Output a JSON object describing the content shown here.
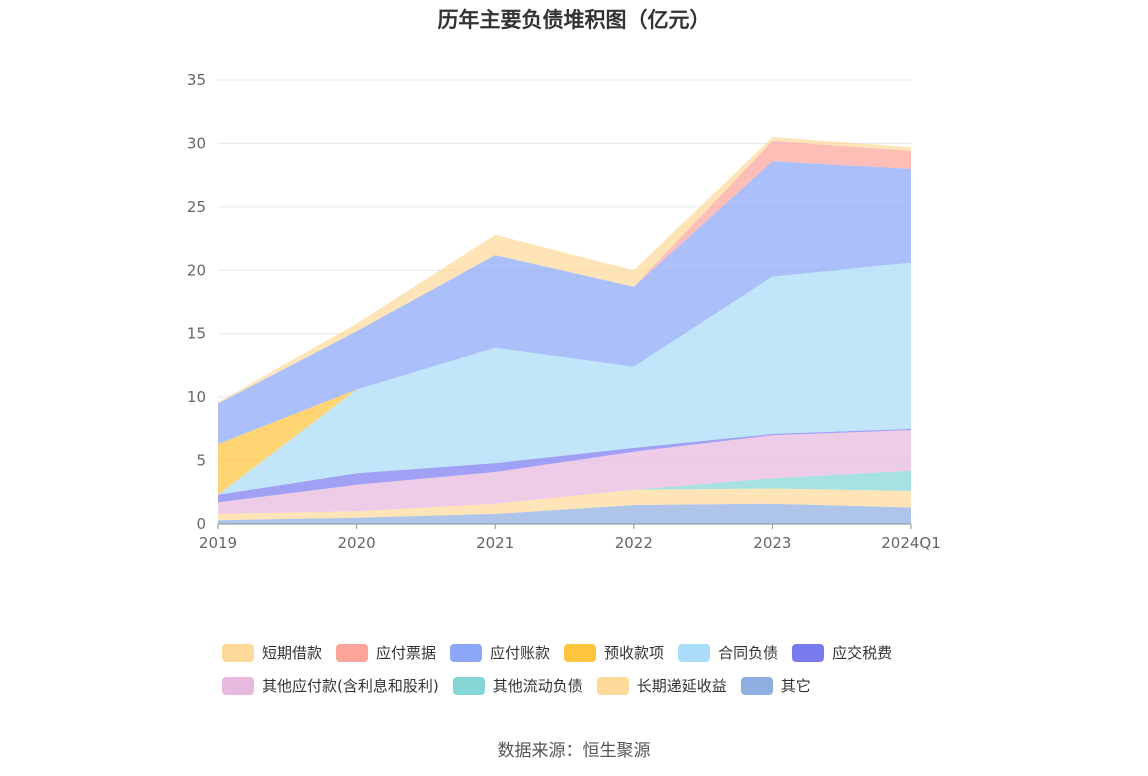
{
  "title": "历年主要负债堆积图（亿元）",
  "source": "数据来源：恒生聚源",
  "chart_data": {
    "type": "area",
    "stacked": true,
    "categories": [
      "2019",
      "2020",
      "2021",
      "2022",
      "2023",
      "2024Q1"
    ],
    "ylim": [
      0,
      35
    ],
    "yticks": [
      0,
      5,
      10,
      15,
      20,
      25,
      30,
      35
    ],
    "grid": true,
    "legend_position": "bottom",
    "series": [
      {
        "name": "其它",
        "color": "#8fafe0",
        "values": [
          0.3,
          0.5,
          0.8,
          1.5,
          1.6,
          1.3
        ]
      },
      {
        "name": "长期递延收益",
        "color": "#fdd99a",
        "values": [
          0.5,
          0.5,
          0.8,
          1.2,
          1.2,
          1.3
        ]
      },
      {
        "name": "其他流动负债",
        "color": "#86d6d6",
        "values": [
          0.0,
          0.0,
          0.0,
          0.0,
          0.8,
          1.6
        ]
      },
      {
        "name": "其他应付款(含利息和股利)",
        "color": "#e8b8df",
        "values": [
          0.9,
          2.1,
          2.5,
          3.0,
          3.4,
          3.2
        ]
      },
      {
        "name": "应交税费",
        "color": "#7b7bf0",
        "values": [
          0.6,
          0.9,
          0.7,
          0.3,
          0.1,
          0.1
        ]
      },
      {
        "name": "合同负债",
        "color": "#a9dcf7",
        "values": [
          0.0,
          6.6,
          9.1,
          6.4,
          12.4,
          13.1
        ]
      },
      {
        "name": "预收款项",
        "color": "#ffc53d",
        "values": [
          4.0,
          0.0,
          0.0,
          0.0,
          0.0,
          0.0
        ]
      },
      {
        "name": "应付账款",
        "color": "#8aa7f8",
        "values": [
          3.2,
          4.6,
          7.3,
          6.3,
          9.1,
          7.4
        ]
      },
      {
        "name": "应付票据",
        "color": "#fba59a",
        "values": [
          0.0,
          0.0,
          0.0,
          0.0,
          1.6,
          1.4
        ]
      },
      {
        "name": "短期借款",
        "color": "#fdd99a",
        "values": [
          0.1,
          0.6,
          1.6,
          1.3,
          0.3,
          0.3
        ]
      }
    ],
    "legend_rows": [
      [
        "短期借款",
        "应付票据",
        "应付账款",
        "预收款项",
        "合同负债",
        "应交税费"
      ],
      [
        "其他应付款(含利息和股利)",
        "其他流动负债",
        "长期递延收益",
        "其它"
      ]
    ]
  }
}
